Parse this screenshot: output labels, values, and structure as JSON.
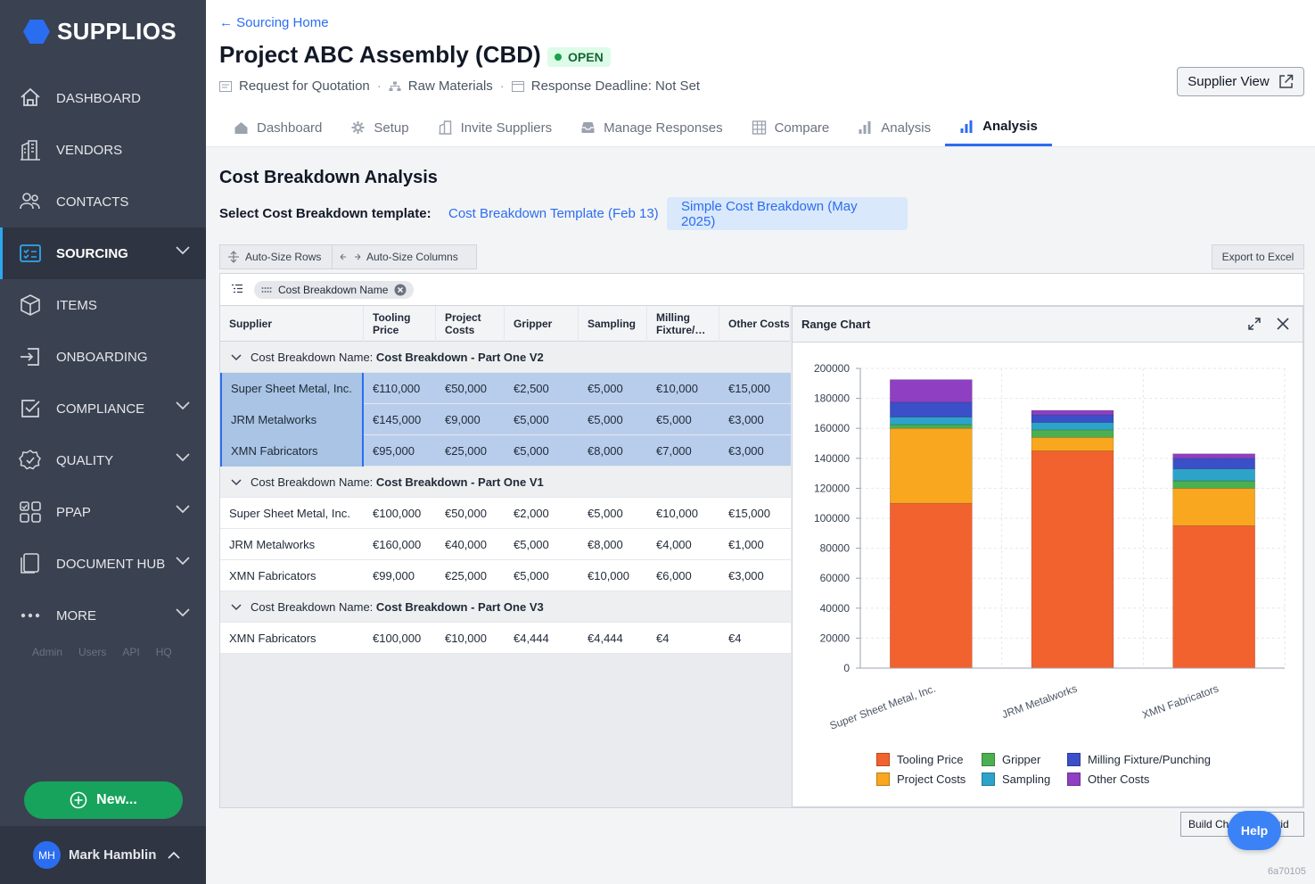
{
  "brand": {
    "name": "SUPPLIOS",
    "accent": "#2b6df0"
  },
  "sidebar": {
    "items": [
      {
        "label": "DASHBOARD",
        "icon": "home-icon",
        "chevron": false
      },
      {
        "label": "VENDORS",
        "icon": "building-icon",
        "chevron": false
      },
      {
        "label": "CONTACTS",
        "icon": "people-icon",
        "chevron": false
      },
      {
        "label": "SOURCING",
        "icon": "checklist-icon",
        "chevron": true,
        "active": true
      },
      {
        "label": "ITEMS",
        "icon": "cube-icon",
        "chevron": false
      },
      {
        "label": "ONBOARDING",
        "icon": "enter-icon",
        "chevron": false
      },
      {
        "label": "COMPLIANCE",
        "icon": "checkbox-icon",
        "chevron": true
      },
      {
        "label": "QUALITY",
        "icon": "badge-check-icon",
        "chevron": true
      },
      {
        "label": "PPAP",
        "icon": "grid-icon",
        "chevron": true
      },
      {
        "label": "DOCUMENT HUB",
        "icon": "documents-icon",
        "chevron": true
      },
      {
        "label": "MORE",
        "icon": "dots-icon",
        "chevron": true
      }
    ],
    "admin_links": [
      "Admin",
      "Users",
      "API",
      "HQ"
    ],
    "new_button": "New...",
    "user": {
      "initials": "MH",
      "name": "Mark Hamblin"
    }
  },
  "header": {
    "back_link": "Sourcing Home",
    "title": "Project ABC Assembly (CBD)",
    "status": "OPEN",
    "meta": [
      "Request for Quotation",
      "Raw Materials",
      "Response Deadline: Not Set"
    ],
    "supplier_view": "Supplier View",
    "tabs": [
      {
        "label": "Dashboard",
        "icon": "house-icon"
      },
      {
        "label": "Setup",
        "icon": "gear-icon"
      },
      {
        "label": "Invite Suppliers",
        "icon": "building-icon"
      },
      {
        "label": "Manage Responses",
        "icon": "inbox-icon"
      },
      {
        "label": "Compare",
        "icon": "table-icon"
      },
      {
        "label": "Analysis",
        "icon": "bar-chart-icon"
      },
      {
        "label": "Analysis",
        "icon": "bar-chart-icon",
        "active": true
      }
    ]
  },
  "content": {
    "section_title": "Cost Breakdown Analysis",
    "template_label": "Select Cost Breakdown template:",
    "templates": [
      "Cost Breakdown Template (Feb 13)",
      "Simple Cost Breakdown (May 2025)"
    ],
    "toolbar": {
      "auto_rows": "Auto-Size Rows",
      "auto_cols": "Auto-Size Columns",
      "export": "Export to Excel"
    },
    "group_chip": "Cost Breakdown Name",
    "columns": [
      "Supplier",
      "Tooling Price",
      "Project Costs",
      "Gripper",
      "Sampling",
      "Milling Fixture/…",
      "Other Costs"
    ],
    "group_prefix": "Cost Breakdown Name:",
    "groups": [
      {
        "name": "Cost Breakdown - Part One V2",
        "selected": true,
        "rows": [
          [
            "Super Sheet Metal, Inc.",
            "€110,000",
            "€50,000",
            "€2,500",
            "€5,000",
            "€10,000",
            "€15,000"
          ],
          [
            "JRM Metalworks",
            "€145,000",
            "€9,000",
            "€5,000",
            "€5,000",
            "€5,000",
            "€3,000"
          ],
          [
            "XMN Fabricators",
            "€95,000",
            "€25,000",
            "€5,000",
            "€8,000",
            "€7,000",
            "€3,000"
          ]
        ]
      },
      {
        "name": "Cost Breakdown - Part One V1",
        "selected": false,
        "rows": [
          [
            "Super Sheet Metal, Inc.",
            "€100,000",
            "€50,000",
            "€2,000",
            "€5,000",
            "€10,000",
            "€15,000"
          ],
          [
            "JRM Metalworks",
            "€160,000",
            "€40,000",
            "€5,000",
            "€8,000",
            "€4,000",
            "€1,000"
          ],
          [
            "XMN Fabricators",
            "€99,000",
            "€25,000",
            "€5,000",
            "€10,000",
            "€6,000",
            "€3,000"
          ]
        ]
      },
      {
        "name": "Cost Breakdown - Part One V3",
        "selected": false,
        "rows": [
          [
            "XMN Fabricators",
            "€100,000",
            "€10,000",
            "€4,444",
            "€4,444",
            "€4",
            "€4"
          ]
        ]
      }
    ],
    "build_button": "Build Chart from Grid",
    "help": "Help",
    "version": "6a70105"
  },
  "chart_data": {
    "type": "bar",
    "stacked": true,
    "title": "Range Chart",
    "categories": [
      "Super Sheet Metal, Inc.",
      "JRM Metalworks",
      "XMN Fabricators"
    ],
    "series": [
      {
        "name": "Tooling Price",
        "values": [
          110000,
          145000,
          95000
        ],
        "color": "#f2622e"
      },
      {
        "name": "Project Costs",
        "values": [
          50000,
          9000,
          25000
        ],
        "color": "#f9a71f"
      },
      {
        "name": "Gripper",
        "values": [
          2500,
          5000,
          5000
        ],
        "color": "#4caf50"
      },
      {
        "name": "Sampling",
        "values": [
          5000,
          5000,
          8000
        ],
        "color": "#2ea3c9"
      },
      {
        "name": "Milling Fixture/Punching",
        "values": [
          10000,
          5000,
          7000
        ],
        "color": "#3b4fc8"
      },
      {
        "name": "Other Costs",
        "values": [
          15000,
          3000,
          3000
        ],
        "color": "#8e3fc2"
      }
    ],
    "ylim": [
      0,
      200000
    ],
    "yticks": [
      "0",
      "20000",
      "40000",
      "60000",
      "80000",
      "100000",
      "120000",
      "140000",
      "160000",
      "180000",
      "200000"
    ],
    "grid": true,
    "legend": "bottom"
  }
}
